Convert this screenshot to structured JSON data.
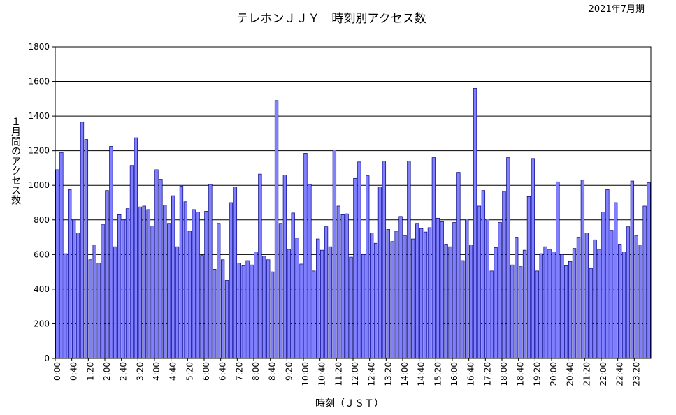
{
  "chart_data": {
    "type": "bar",
    "title": "テレホンＪＪＹ　時刻別アクセス数",
    "period": "2021年7月期",
    "xlabel": "時刻（ＪＳＴ）",
    "ylabel": "１月間のアクセス数",
    "ylim": [
      0,
      1800
    ],
    "yticks": [
      0,
      200,
      400,
      600,
      800,
      1000,
      1200,
      1400,
      1600,
      1800
    ],
    "grid": true,
    "bar_color": "#8080ff",
    "bar_edge_color": "#000080",
    "interval_minutes": 10,
    "tick_labels": [
      "0:00",
      "0:40",
      "1:20",
      "2:00",
      "2:40",
      "3:20",
      "4:00",
      "4:40",
      "5:20",
      "6:00",
      "6:40",
      "7:20",
      "8:00",
      "8:40",
      "9:20",
      "10:00",
      "10:40",
      "11:20",
      "12:00",
      "12:40",
      "13:20",
      "14:00",
      "14:40",
      "15:20",
      "16:00",
      "16:40",
      "17:20",
      "18:00",
      "18:40",
      "19:20",
      "20:00",
      "20:40",
      "21:20",
      "22:00",
      "22:40",
      "23:20"
    ],
    "values": [
      1090,
      1190,
      605,
      975,
      800,
      725,
      1365,
      1265,
      570,
      655,
      550,
      775,
      970,
      1225,
      645,
      830,
      800,
      865,
      1115,
      1275,
      875,
      880,
      860,
      765,
      1090,
      1035,
      885,
      780,
      940,
      645,
      995,
      905,
      735,
      860,
      845,
      595,
      850,
      1005,
      515,
      780,
      570,
      450,
      900,
      990,
      550,
      535,
      565,
      540,
      615,
      1065,
      590,
      570,
      500,
      1490,
      780,
      1060,
      630,
      840,
      695,
      545,
      1185,
      1005,
      505,
      690,
      625,
      760,
      645,
      1205,
      880,
      830,
      835,
      585,
      1040,
      1135,
      600,
      1055,
      725,
      665,
      990,
      1140,
      745,
      675,
      735,
      820,
      710,
      1140,
      690,
      780,
      750,
      730,
      755,
      1160,
      810,
      790,
      660,
      645,
      785,
      1075,
      565,
      805,
      655,
      1560,
      880,
      970,
      805,
      505,
      640,
      785,
      965,
      1160,
      540,
      700,
      530,
      625,
      935,
      1155,
      505,
      605,
      645,
      630,
      615,
      1020,
      600,
      535,
      560,
      635,
      700,
      1030,
      725,
      520,
      685,
      630,
      845,
      975,
      740,
      900,
      660,
      615,
      760,
      1025,
      710,
      655,
      880,
      1015
    ]
  }
}
